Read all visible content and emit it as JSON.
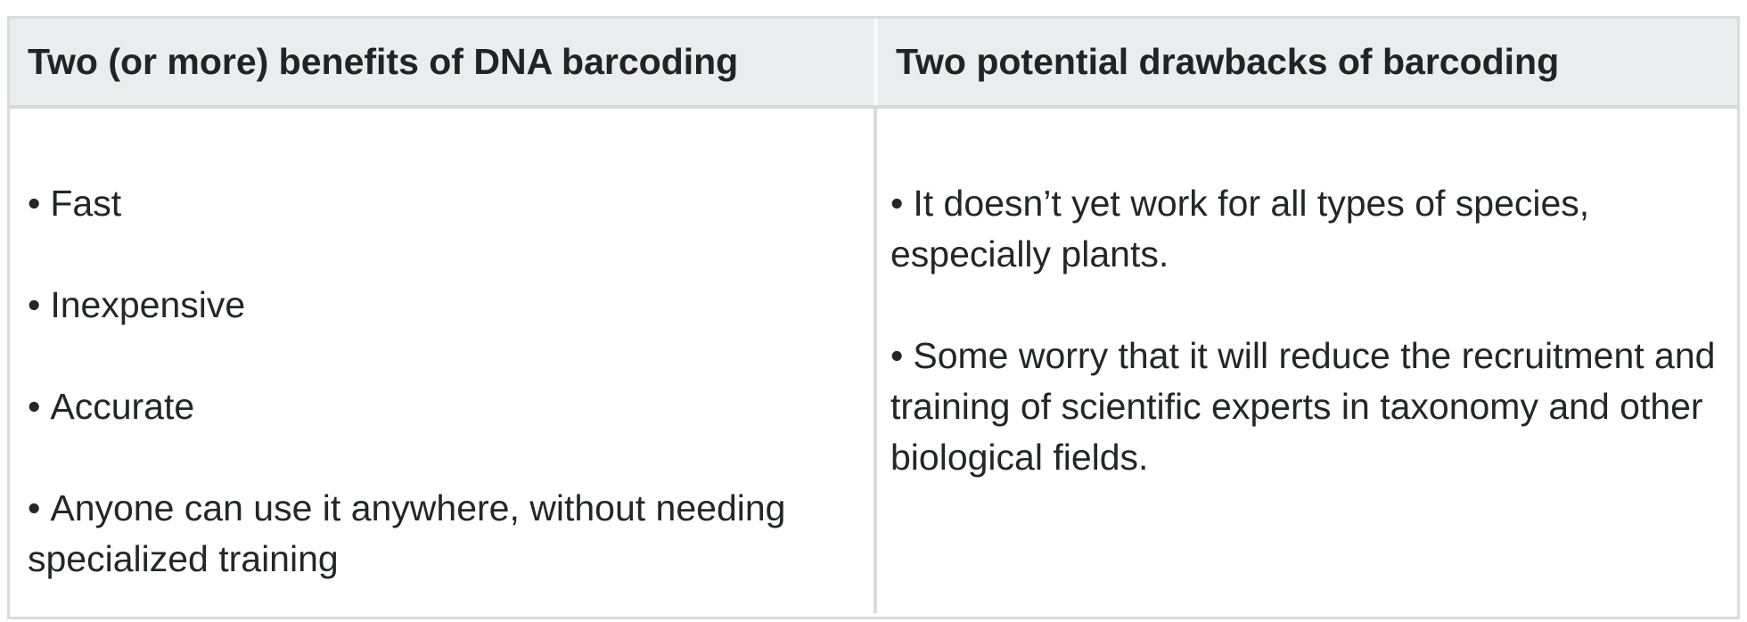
{
  "table": {
    "bullet": "•",
    "colors": {
      "header_background": "#ebeced",
      "border": "#dadbdd",
      "column_divider": "#dcdcde",
      "header_gap": "#f8f9f9",
      "text": "#242628"
    },
    "columns": {
      "benefits": {
        "header": "Two (or more) benefits of DNA barcoding",
        "items": [
          "Fast",
          "Inexpensive",
          "Accurate",
          "Anyone can use it anywhere, without needing specialized training"
        ]
      },
      "drawbacks": {
        "header": "Two potential drawbacks of barcoding",
        "items": [
          "It doesn’t yet work for all types of species, especially plants.",
          "Some worry that it will reduce the recruitment and training of scientific experts in taxonomy and other biological fields."
        ]
      }
    }
  }
}
